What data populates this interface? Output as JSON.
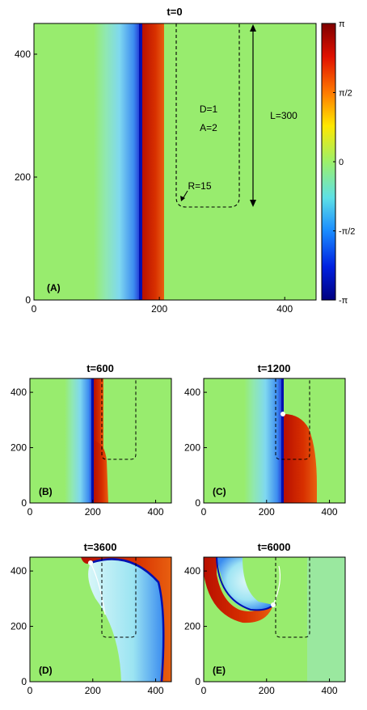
{
  "chart_data": [
    {
      "type": "heatmap",
      "panel": "(A)",
      "title": "t=0",
      "xlim": [
        0,
        450
      ],
      "ylim": [
        0,
        450
      ],
      "xticks": [
        "0",
        "200",
        "400"
      ],
      "yticks": [
        "0",
        "200",
        "400"
      ],
      "wave": {
        "blue_x": 160,
        "front_x": 165,
        "red_x": 200,
        "tail_x": 95
      },
      "annotations": {
        "diffusion": "D=1",
        "amplitude": "A=2",
        "length": "L=300",
        "radius": "R=15"
      },
      "obstacle": {
        "x": [
          225,
          325
        ],
        "y": [
          150,
          450
        ],
        "corner_radius": 15
      },
      "length_arrow": {
        "x": 350,
        "y": [
          150,
          450
        ]
      }
    },
    {
      "type": "heatmap",
      "panel": "(B)",
      "title": "t=600",
      "xlim": [
        0,
        450
      ],
      "ylim": [
        0,
        450
      ],
      "xticks": [
        "0",
        "200",
        "400"
      ],
      "yticks": [
        "0",
        "200",
        "400"
      ],
      "wave": {
        "blue_x": 200,
        "front_x": 205,
        "red_x": 240,
        "tail_x": 110
      }
    },
    {
      "type": "heatmap",
      "panel": "(C)",
      "title": "t=1200",
      "xlim": [
        0,
        450
      ],
      "ylim": [
        0,
        450
      ],
      "xticks": [
        "0",
        "200",
        "400"
      ],
      "yticks": [
        "0",
        "200",
        "400"
      ],
      "tip": {
        "x": 220,
        "y": 275
      }
    },
    {
      "type": "heatmap",
      "panel": "(D)",
      "title": "t=3600",
      "xlim": [
        0,
        450
      ],
      "ylim": [
        0,
        450
      ],
      "xticks": [
        "0",
        "200",
        "400"
      ],
      "yticks": [
        "0",
        "200",
        "400"
      ],
      "tip": {
        "x": 185,
        "y": 375
      }
    },
    {
      "type": "heatmap",
      "panel": "(E)",
      "title": "t=6000",
      "xlim": [
        0,
        450
      ],
      "ylim": [
        0,
        450
      ],
      "xticks": [
        "0",
        "200",
        "400"
      ],
      "yticks": [
        "0",
        "200",
        "400"
      ],
      "tip": {
        "x": 170,
        "y": 335
      }
    }
  ],
  "colorbar": {
    "ticks": [
      "π",
      "π/2",
      "0",
      "-π/2",
      "-π"
    ],
    "range": [
      -3.14159,
      3.14159
    ],
    "colors": [
      "#00008f",
      "#0000ff",
      "#00b0ff",
      "#80ffa0",
      "#a0ff60",
      "#ffff00",
      "#ff9000",
      "#ff2000",
      "#7f0000"
    ]
  }
}
